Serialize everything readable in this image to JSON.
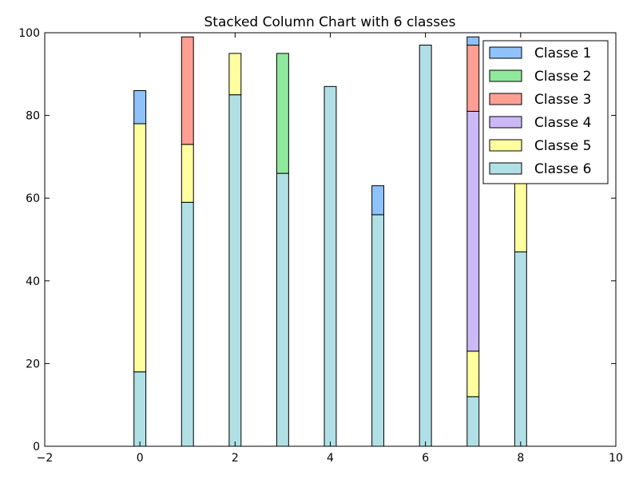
{
  "chart_data": {
    "type": "bar",
    "stacked": true,
    "title": "Stacked Column Chart with 6 classes",
    "xlabel": "",
    "ylabel": "",
    "xlim": [
      -2,
      10
    ],
    "ylim": [
      0,
      100
    ],
    "x_ticks": [
      -2,
      0,
      2,
      4,
      6,
      8,
      10
    ],
    "y_ticks": [
      0,
      20,
      40,
      60,
      80,
      100
    ],
    "grid": false,
    "legend_position": "top-right",
    "x": [
      0,
      1,
      2,
      3,
      4,
      5,
      6,
      7,
      8
    ],
    "series": [
      {
        "name": "Classe 6",
        "color": "#b0e0e6",
        "values": [
          18,
          59,
          85,
          66,
          87,
          56,
          97,
          12,
          47
        ]
      },
      {
        "name": "Classe 5",
        "color": "#ffff9f",
        "values": [
          60,
          14,
          10,
          0,
          0,
          0,
          0,
          11,
          17
        ]
      },
      {
        "name": "Classe 4",
        "color": "#cbb8f7",
        "values": [
          0,
          0,
          0,
          0,
          0,
          0,
          0,
          58,
          0
        ]
      },
      {
        "name": "Classe 3",
        "color": "#ff9f94",
        "values": [
          0,
          26,
          0,
          0,
          0,
          0,
          0,
          16,
          0
        ]
      },
      {
        "name": "Classe 2",
        "color": "#8fe89b",
        "values": [
          0,
          0,
          0,
          29,
          0,
          0,
          0,
          0,
          0
        ]
      },
      {
        "name": "Classe 1",
        "color": "#8fc2fb",
        "values": [
          8,
          0,
          0,
          0,
          0,
          7,
          0,
          2,
          0
        ]
      }
    ],
    "legend_order": [
      "Classe 1",
      "Classe 2",
      "Classe 3",
      "Classe 4",
      "Classe 5",
      "Classe 6"
    ]
  }
}
